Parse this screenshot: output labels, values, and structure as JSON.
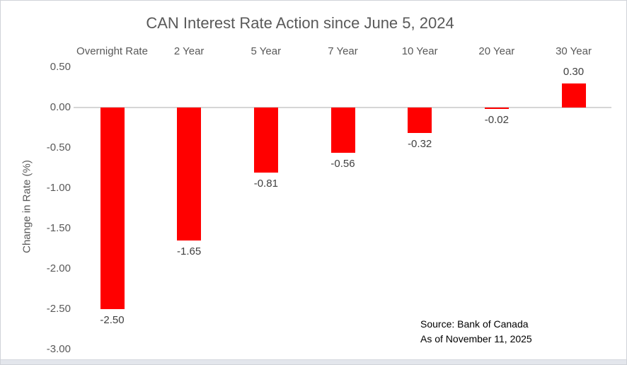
{
  "chart_data": {
    "type": "bar",
    "title": "CAN Interest Rate Action since June 5, 2024",
    "categories": [
      "Overnight Rate",
      "2 Year",
      "5 Year",
      "7 Year",
      "10 Year",
      "20 Year",
      "30 Year"
    ],
    "values": [
      -2.5,
      -1.65,
      -0.81,
      -0.56,
      -0.32,
      -0.02,
      0.3
    ],
    "data_labels": [
      "-2.50",
      "-1.65",
      "-0.81",
      "-0.56",
      "-0.32",
      "-0.02",
      "0.30"
    ],
    "xlabel": "",
    "ylabel": "Change in Rate (%)",
    "y_ticks": [
      {
        "label": "0.50",
        "value": 0.5
      },
      {
        "label": "0.00",
        "value": 0.0
      },
      {
        "label": "-0.50",
        "value": -0.5
      },
      {
        "label": "-1.00",
        "value": -1.0
      },
      {
        "label": "-1.50",
        "value": -1.5
      },
      {
        "label": "-2.00",
        "value": -2.0
      },
      {
        "label": "-2.50",
        "value": -2.5
      },
      {
        "label": "-3.00",
        "value": -3.0
      }
    ],
    "ylim": [
      -3.0,
      0.5
    ],
    "grid": "zero-line-only",
    "legend": "none",
    "bar_color": "#ff0000",
    "annotations": [
      "Source: Bank of Canada",
      "As of November 11, 2025"
    ]
  },
  "source_note": {
    "line1": "Source: Bank of Canada",
    "line2": "As of November 11, 2025"
  },
  "colors": {
    "bar": "#ff0000",
    "title_text": "#595959",
    "axis_text": "#595959",
    "data_label_text": "#404040",
    "source_text": "#000000",
    "zero_line": "#d6d6d6",
    "window_border": "#d0d3d9",
    "bottom_strip": "#e3e6ec"
  }
}
